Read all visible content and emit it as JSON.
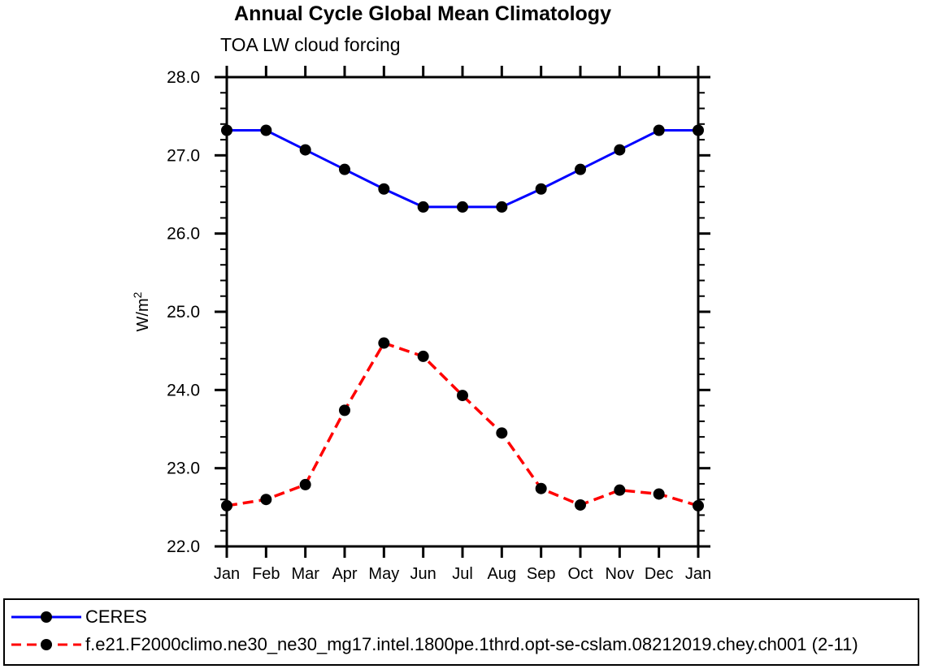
{
  "page": {
    "background": "#ffffff"
  },
  "chart_data": {
    "type": "line",
    "title": "Annual Cycle Global Mean Climatology",
    "subtitle": "TOA LW cloud forcing",
    "ylabel": "W/m²",
    "xlabel": "",
    "categories": [
      "Jan",
      "Feb",
      "Mar",
      "Apr",
      "May",
      "Jun",
      "Jul",
      "Aug",
      "Sep",
      "Oct",
      "Nov",
      "Dec",
      "Jan"
    ],
    "ylim": [
      22.0,
      28.0
    ],
    "y_major_step": 1.0,
    "y_minor_step": 0.2,
    "y_tick_labels": [
      "22.0",
      "23.0",
      "24.0",
      "25.0",
      "26.0",
      "27.0",
      "28.0"
    ],
    "grid": false,
    "legend_position": "bottom-outside-box",
    "axis_color": "#000000",
    "marker_shape": "filled-circle",
    "series": [
      {
        "name": "CERES",
        "color": "#0000ff",
        "line_style": "solid",
        "marker_color": "#000000",
        "values": [
          27.32,
          27.32,
          27.07,
          26.82,
          26.57,
          26.34,
          26.34,
          26.34,
          26.57,
          26.82,
          27.07,
          27.32,
          27.32
        ]
      },
      {
        "name": "f.e21.F2000climo.ne30_ne30_mg17.intel.1800pe.1thrd.opt-se-cslam.08212019.chey.ch001 (2-11)",
        "color": "#ff0000",
        "line_style": "dashed",
        "marker_color": "#000000",
        "values": [
          22.52,
          22.6,
          22.79,
          23.74,
          24.6,
          24.43,
          23.93,
          23.45,
          22.74,
          22.53,
          22.72,
          22.67,
          22.52
        ]
      }
    ]
  }
}
